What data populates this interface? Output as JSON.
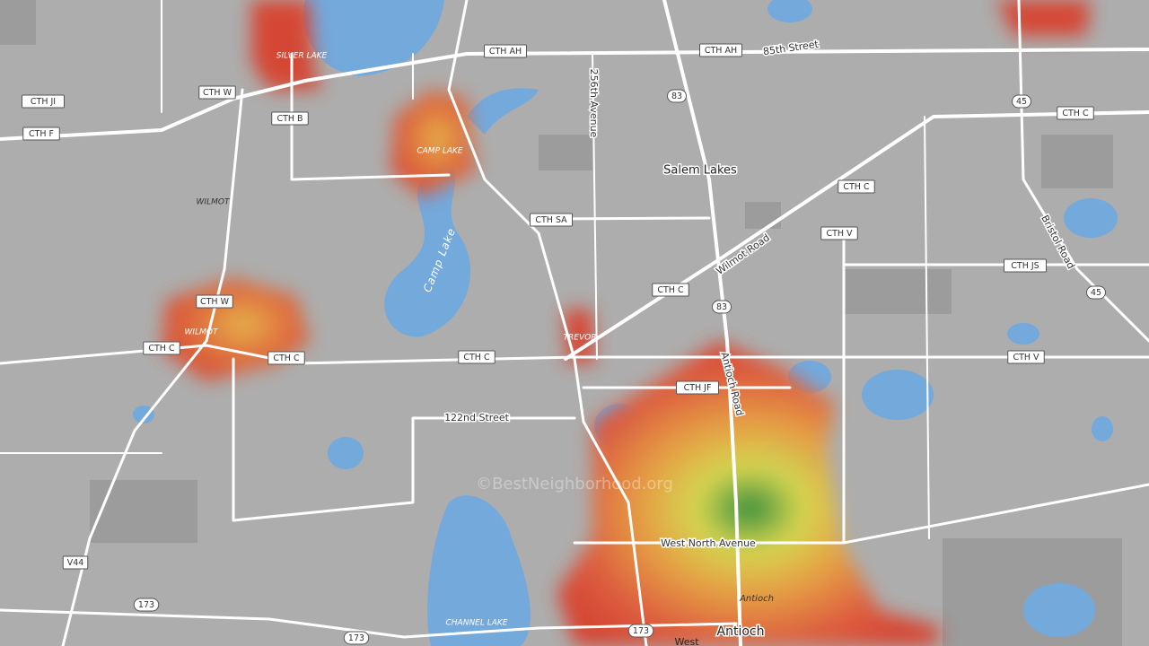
{
  "map": {
    "shields": [
      "CTH AH",
      "CTH AH",
      "83",
      "CTH JI",
      "CTH W",
      "CTH F",
      "CTH B",
      "45",
      "CTH C",
      "CTH C",
      "CTH SA",
      "CTH V",
      "CTH JS",
      "45",
      "CTH W",
      "CTH C",
      "83",
      "CTH C",
      "CTH C",
      "CTH C",
      "CTH V",
      "CTH JF",
      "V44",
      "173",
      "173",
      "173"
    ],
    "road_names": [
      "85th Street",
      "256th Avenue",
      "Wilmot Road",
      "Bristol Road",
      "Antioch Road",
      "122nd Street",
      "West North Avenue"
    ],
    "water_names": [
      "Camp Lake"
    ],
    "places": [
      "SILVER LAKE",
      "CAMP LAKE",
      "WILMOT",
      "Salem Lakes",
      "WILMOT",
      "TREVOR",
      "CHANNEL LAKE",
      "Antioch",
      "Antioch",
      "West"
    ],
    "watermark": "©BestNeighborhood.org"
  }
}
